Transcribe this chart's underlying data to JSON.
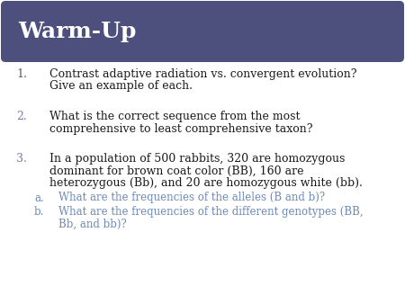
{
  "title": "Warm-Up",
  "title_bg_color": "#4d4f7c",
  "title_text_color": "#ffffff",
  "slide_bg_color": "#ffffff",
  "body_text_color": "#1a1a1a",
  "num_color_1": "#5a5a5a",
  "num_color_2": "#7a7aaa",
  "num_color_3": "#7a7aaa",
  "blue_text_color": "#6e8ab5",
  "items": [
    {
      "num": "1.",
      "lines": [
        "Contrast adaptive radiation vs. convergent evolution?",
        "Give an example of each."
      ],
      "color": "#1a1a1a",
      "num_color": "#5a5a5a"
    },
    {
      "num": "2.",
      "lines": [
        "What is the correct sequence from the most",
        "comprehensive to least comprehensive taxon?"
      ],
      "color": "#1a1a1a",
      "num_color": "#7a7aaa"
    },
    {
      "num": "3.",
      "lines": [
        "In a population of 500 rabbits, 320 are homozygous",
        "dominant for brown coat color (BB), 160 are",
        "heterozygous (Bb), and 20 are homozygous white (bb)."
      ],
      "color": "#1a1a1a",
      "num_color": "#7a7aaa"
    }
  ],
  "sub_items": [
    {
      "letter": "a.",
      "lines": [
        "What are the frequencies of the alleles (B and b)?"
      ],
      "color": "#6e8ab5"
    },
    {
      "letter": "b.",
      "lines": [
        "What are the frequencies of the different genotypes (BB,",
        "Bb, and bb)?"
      ],
      "color": "#6e8ab5"
    }
  ],
  "title_fontsize": 18,
  "body_fontsize": 9.0,
  "sub_fontsize": 8.5
}
